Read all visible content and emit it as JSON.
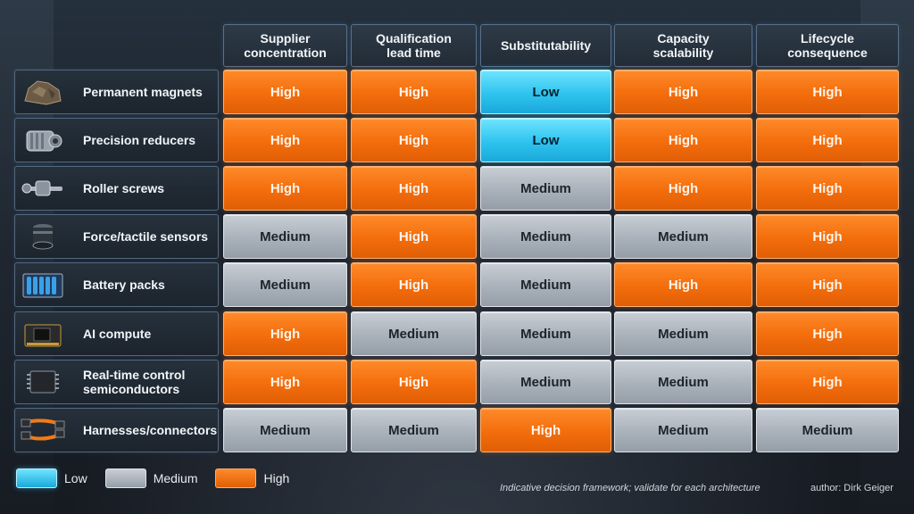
{
  "chart_data": {
    "type": "table",
    "title": "",
    "columns": [
      "Supplier\nconcentration",
      "Qualification\nlead time",
      "Substitutability",
      "Capacity\nscalability",
      "Lifecycle\nconsequence"
    ],
    "rows": [
      {
        "label": "Permanent magnets",
        "icon": "rare-earth-rock-icon",
        "values": [
          "High",
          "High",
          "Low",
          "High",
          "High"
        ]
      },
      {
        "label": "Precision reducers",
        "icon": "gear-reducer-icon",
        "values": [
          "High",
          "High",
          "Low",
          "High",
          "High"
        ]
      },
      {
        "label": "Roller screws",
        "icon": "roller-screw-icon",
        "values": [
          "High",
          "High",
          "Medium",
          "High",
          "High"
        ]
      },
      {
        "label": "Force/tactile sensors",
        "icon": "force-sensor-icon",
        "values": [
          "Medium",
          "High",
          "Medium",
          "Medium",
          "High"
        ]
      },
      {
        "label": "Battery packs",
        "icon": "battery-pack-icon",
        "values": [
          "Medium",
          "High",
          "Medium",
          "High",
          "High"
        ]
      },
      {
        "label": "AI compute",
        "icon": "compute-module-icon",
        "values": [
          "High",
          "Medium",
          "Medium",
          "Medium",
          "High"
        ]
      },
      {
        "label": "Real-time control\nsemiconductors",
        "icon": "microchip-icon",
        "values": [
          "High",
          "High",
          "Medium",
          "Medium",
          "High"
        ]
      },
      {
        "label": "Harnesses/connectors",
        "icon": "connector-harness-icon",
        "values": [
          "Medium",
          "Medium",
          "High",
          "Medium",
          "Medium"
        ]
      }
    ],
    "legend": {
      "placement": "bottom-left",
      "items": [
        {
          "label": "Low",
          "color": "#2ec3ee"
        },
        {
          "label": "Medium",
          "color": "#a9b1ba"
        },
        {
          "label": "High",
          "color": "#f36d0c"
        }
      ]
    }
  },
  "footer": {
    "note": "Indicative decision framework; validate for each architecture",
    "author": "author: Dirk Geiger"
  }
}
